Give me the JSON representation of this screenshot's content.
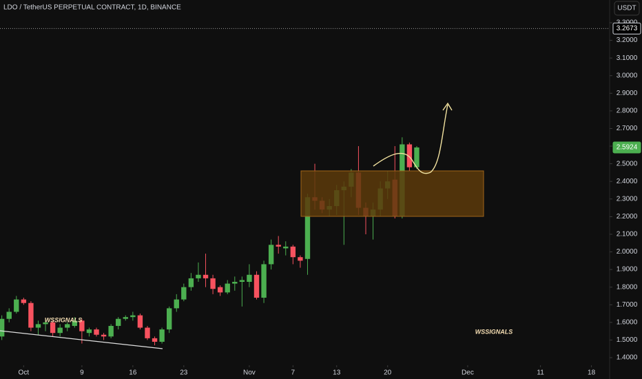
{
  "chart_data": {
    "type": "candlestick",
    "title": "LDO / TetherUS PERPETUAL CONTRACT, 1D, BINANCE",
    "currency": "USDT",
    "x": [
      -3,
      -2,
      -1,
      0,
      1,
      2,
      3,
      4,
      5,
      6,
      7,
      8,
      9,
      10,
      11,
      12,
      13,
      14,
      15,
      16,
      17,
      18,
      19,
      20,
      21,
      22,
      23,
      24,
      25,
      26,
      27,
      28,
      29,
      30,
      31,
      32,
      33,
      34,
      35,
      36,
      37,
      38,
      39,
      40,
      41,
      42,
      43,
      44,
      45,
      46,
      47,
      48,
      49,
      50,
      51,
      52,
      53,
      54
    ],
    "open": [
      1.52,
      1.62,
      1.66,
      1.73,
      1.71,
      1.57,
      1.59,
      1.6,
      1.54,
      1.57,
      1.58,
      1.61,
      1.54,
      1.56,
      1.53,
      1.52,
      1.58,
      1.62,
      1.63,
      1.64,
      1.57,
      1.51,
      1.49,
      1.56,
      1.68,
      1.73,
      1.8,
      1.85,
      1.87,
      1.85,
      1.8,
      1.77,
      1.82,
      1.83,
      1.83,
      1.87,
      1.74,
      1.93,
      2.04,
      2.02,
      2.03,
      1.97,
      1.96,
      2.31,
      2.29,
      2.24,
      2.26,
      2.35,
      2.37,
      2.45,
      2.25,
      2.2,
      2.24,
      2.36,
      2.41,
      2.2,
      2.61,
      2.48
    ],
    "high": [
      1.64,
      1.68,
      1.75,
      1.74,
      1.72,
      1.61,
      1.62,
      1.61,
      1.59,
      1.6,
      1.63,
      1.62,
      1.57,
      1.57,
      1.54,
      1.59,
      1.63,
      1.64,
      1.66,
      1.65,
      1.58,
      1.52,
      1.57,
      1.69,
      1.76,
      1.82,
      1.88,
      1.94,
      1.99,
      1.87,
      1.81,
      1.84,
      1.86,
      1.86,
      1.93,
      1.89,
      1.95,
      2.07,
      2.09,
      2.06,
      2.04,
      1.98,
      2.33,
      2.5,
      2.31,
      2.3,
      2.38,
      2.4,
      2.47,
      2.6,
      2.28,
      2.28,
      2.4,
      2.46,
      2.6,
      2.65,
      2.62,
      2.6
    ],
    "low": [
      1.5,
      1.6,
      1.65,
      1.7,
      1.55,
      1.53,
      1.55,
      1.52,
      1.52,
      1.55,
      1.57,
      1.48,
      1.52,
      1.52,
      1.5,
      1.51,
      1.56,
      1.61,
      1.61,
      1.56,
      1.5,
      1.47,
      1.48,
      1.54,
      1.66,
      1.72,
      1.78,
      1.83,
      1.8,
      1.76,
      1.75,
      1.76,
      1.78,
      1.69,
      1.8,
      1.73,
      1.71,
      1.9,
      1.99,
      1.98,
      1.93,
      1.91,
      1.87,
      2.24,
      2.22,
      2.2,
      2.21,
      2.04,
      2.31,
      2.21,
      2.1,
      2.07,
      2.2,
      2.3,
      2.19,
      2.19,
      2.46,
      2.47
    ],
    "close": [
      1.62,
      1.66,
      1.73,
      1.71,
      1.57,
      1.59,
      1.6,
      1.54,
      1.57,
      1.59,
      1.61,
      1.55,
      1.56,
      1.53,
      1.52,
      1.58,
      1.62,
      1.63,
      1.64,
      1.57,
      1.51,
      1.49,
      1.56,
      1.68,
      1.73,
      1.8,
      1.85,
      1.87,
      1.85,
      1.79,
      1.77,
      1.82,
      1.83,
      1.84,
      1.87,
      1.74,
      1.93,
      2.04,
      2.03,
      2.03,
      1.97,
      1.95,
      2.31,
      2.29,
      2.24,
      2.26,
      2.35,
      2.37,
      2.45,
      2.25,
      2.2,
      2.24,
      2.36,
      2.4,
      2.2,
      2.61,
      2.48,
      2.5924
    ],
    "up_color": "#4caf50",
    "down_color": "#f7525f",
    "xlim": [
      -3.25,
      80.5
    ],
    "xticks": [
      {
        "value": 0,
        "label": "Oct"
      },
      {
        "value": 8,
        "label": "9"
      },
      {
        "value": 15,
        "label": "16"
      },
      {
        "value": 22,
        "label": "23"
      },
      {
        "value": 31,
        "label": "Nov"
      },
      {
        "value": 37,
        "label": "7"
      },
      {
        "value": 43,
        "label": "13"
      },
      {
        "value": 50,
        "label": "20"
      },
      {
        "value": 61,
        "label": "Dec"
      },
      {
        "value": 71,
        "label": "11"
      },
      {
        "value": 78,
        "label": "18"
      }
    ],
    "ylim": [
      1.357,
      3.429
    ],
    "yticks": [
      {
        "value": 1.4,
        "label": "1.4000"
      },
      {
        "value": 1.5,
        "label": "1.5000"
      },
      {
        "value": 1.6,
        "label": "1.6000"
      },
      {
        "value": 1.7,
        "label": "1.7000"
      },
      {
        "value": 1.8,
        "label": "1.8000"
      },
      {
        "value": 1.9,
        "label": "1.9000"
      },
      {
        "value": 2.0,
        "label": "2.0000"
      },
      {
        "value": 2.1,
        "label": "2.1000"
      },
      {
        "value": 2.2,
        "label": "2.2000"
      },
      {
        "value": 2.3,
        "label": "2.3000"
      },
      {
        "value": 2.4,
        "label": "2.4000"
      },
      {
        "value": 2.5,
        "label": "2.5000"
      },
      {
        "value": 2.6,
        "label": "2.6000"
      },
      {
        "value": 2.7,
        "label": "2.7000"
      },
      {
        "value": 2.8,
        "label": "2.8000"
      },
      {
        "value": 2.9,
        "label": "2.9000"
      },
      {
        "value": 3.0,
        "label": "3.0000"
      },
      {
        "value": 3.1,
        "label": "3.1000"
      },
      {
        "value": 3.2,
        "label": "3.2000"
      },
      {
        "value": 3.3,
        "label": "3.3000"
      }
    ],
    "price_lines": [
      {
        "value": 3.2673,
        "color": "#000000"
      },
      {
        "value": 2.5924,
        "color": "#4caf50"
      }
    ],
    "annotations": [
      "WSSIGNALS",
      "WSSIGNALS"
    ]
  }
}
